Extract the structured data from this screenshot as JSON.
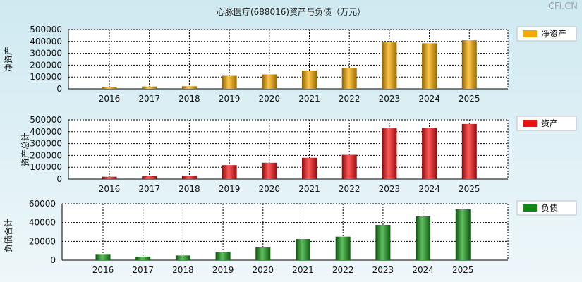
{
  "title": "心脉医疗(688016)资产与负债（万元）",
  "watermark": "CFi.CN",
  "chart_data": [
    {
      "type": "bar",
      "ylabel": "净资产",
      "legend": "净资产",
      "legend_placement": "right",
      "color": "#f2a900",
      "categories": [
        "2016",
        "2017",
        "2018",
        "2019",
        "2020",
        "2021",
        "2022",
        "2023",
        "2024",
        "2025"
      ],
      "values": [
        15000,
        20000,
        22000,
        110000,
        122000,
        155000,
        178000,
        392000,
        385000,
        410000
      ],
      "ylim": [
        0,
        500000
      ],
      "yticks": [
        0,
        100000,
        200000,
        300000,
        400000,
        500000
      ],
      "grid": true
    },
    {
      "type": "bar",
      "ylabel": "资产总计",
      "legend": "资产",
      "legend_placement": "right",
      "color": "#ee1111",
      "categories": [
        "2016",
        "2017",
        "2018",
        "2019",
        "2020",
        "2021",
        "2022",
        "2023",
        "2024",
        "2025"
      ],
      "values": [
        20000,
        26000,
        30000,
        118000,
        138000,
        180000,
        205000,
        428000,
        432000,
        465000
      ],
      "ylim": [
        0,
        500000
      ],
      "yticks": [
        0,
        100000,
        200000,
        300000,
        400000,
        500000
      ],
      "grid": true
    },
    {
      "type": "bar",
      "ylabel": "负债合计",
      "legend": "负债",
      "legend_placement": "right",
      "color": "#118811",
      "categories": [
        "2016",
        "2017",
        "2018",
        "2019",
        "2020",
        "2021",
        "2022",
        "2023",
        "2024",
        "2025"
      ],
      "values": [
        6500,
        3800,
        5000,
        8500,
        13500,
        22500,
        25000,
        37500,
        46500,
        54000
      ],
      "ylim": [
        0,
        60000
      ],
      "yticks": [
        0,
        20000,
        40000,
        60000
      ],
      "grid": true
    }
  ]
}
